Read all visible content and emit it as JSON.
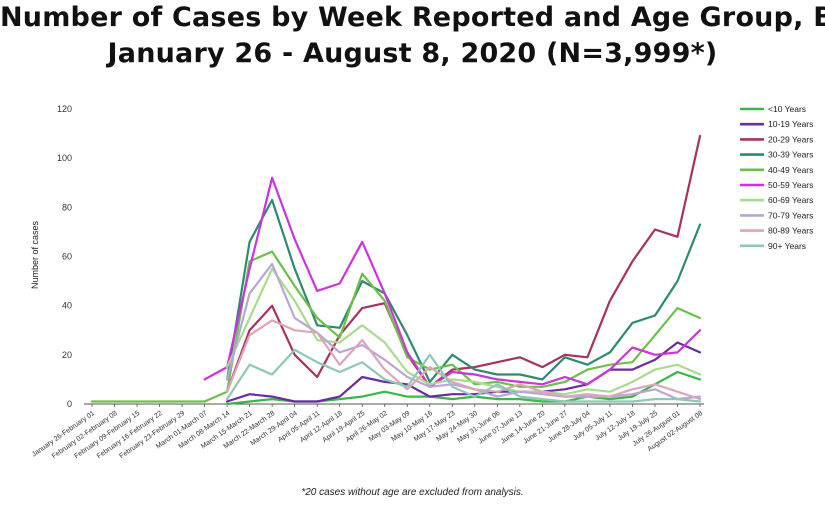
{
  "title_line1": "Number of Cases by Week Reported and Age Group, BC",
  "title_line2": "January 26 - August 8, 2020 (N=3,999*)",
  "footnote": "*20 cases without age are excluded from analysis.",
  "chart_data": {
    "type": "line",
    "title": "Number of Cases by Week Reported and Age Group, BC",
    "subtitle": "January 26 - August 8, 2020 (N=3,999*)",
    "xlabel": "",
    "ylabel": "Number of cases",
    "ylim": [
      0,
      120
    ],
    "yticks": [
      0,
      20,
      40,
      60,
      80,
      100,
      120
    ],
    "grid": false,
    "legend_position": "right",
    "categories": [
      "January 26-February 01",
      "February 02-February 08",
      "February 09-February 15",
      "February 16-February 22",
      "February 23-February 29",
      "March 01-March 07",
      "March 08-March 14",
      "March 15-March 21",
      "March 22-March 28",
      "March 29-April 04",
      "April 05-April 11",
      "April 12-April 18",
      "April 19-April 25",
      "April 26-May 02",
      "May 03-May 09",
      "May 10-May 16",
      "May 17-May 23",
      "May 24-May 30",
      "May 31-June 06",
      "June 07-June 13",
      "June 14-June 20",
      "June 21-June 27",
      "June 28-July 04",
      "July 05-July 11",
      "July 12-July 18",
      "July 19-July 25",
      "July 26-August 01",
      "August 02-August 08"
    ],
    "series": [
      {
        "name": "<10 Years",
        "color": "#3cb648",
        "values": [
          null,
          null,
          null,
          null,
          null,
          null,
          0,
          1,
          2,
          1,
          1,
          2,
          3,
          5,
          3,
          3,
          2,
          3,
          2,
          2,
          1,
          1,
          3,
          2,
          3,
          8,
          13,
          10
        ]
      },
      {
        "name": "10-19 Years",
        "color": "#6a2ca0",
        "values": [
          null,
          null,
          null,
          null,
          null,
          null,
          1,
          4,
          3,
          1,
          1,
          3,
          11,
          9,
          8,
          3,
          4,
          4,
          5,
          5,
          5,
          6,
          8,
          14,
          14,
          18,
          25,
          21
        ]
      },
      {
        "name": "20-29 Years",
        "color": "#a8325e",
        "values": [
          null,
          null,
          null,
          null,
          null,
          null,
          5,
          30,
          40,
          20,
          11,
          28,
          39,
          41,
          20,
          7,
          14,
          15,
          17,
          19,
          15,
          20,
          19,
          42,
          58,
          71,
          68,
          109
        ]
      },
      {
        "name": "30-39 Years",
        "color": "#2e8a6e",
        "values": [
          null,
          null,
          null,
          null,
          null,
          null,
          10,
          66,
          83,
          55,
          32,
          31,
          50,
          45,
          28,
          9,
          20,
          14,
          12,
          12,
          10,
          19,
          16,
          21,
          33,
          36,
          50,
          73
        ]
      },
      {
        "name": "40-49 Years",
        "color": "#6cc04a",
        "values": [
          1,
          1,
          1,
          1,
          1,
          1,
          5,
          58,
          62,
          48,
          35,
          27,
          53,
          42,
          19,
          14,
          16,
          8,
          9,
          7,
          7,
          9,
          14,
          16,
          17,
          28,
          39,
          35
        ]
      },
      {
        "name": "50-59 Years",
        "color": "#cc33dd",
        "values": [
          null,
          null,
          null,
          null,
          null,
          10,
          15,
          55,
          92,
          67,
          46,
          49,
          66,
          45,
          21,
          7,
          13,
          12,
          10,
          9,
          8,
          11,
          8,
          14,
          23,
          20,
          21,
          30
        ]
      },
      {
        "name": "60-69 Years",
        "color": "#a8dc8c",
        "values": [
          null,
          null,
          null,
          null,
          null,
          null,
          15,
          35,
          55,
          42,
          26,
          25,
          32,
          25,
          13,
          8,
          10,
          9,
          7,
          5,
          5,
          4,
          6,
          5,
          9,
          14,
          16,
          12
        ]
      },
      {
        "name": "70-79 Years",
        "color": "#b8a6d6",
        "values": [
          null,
          null,
          null,
          null,
          null,
          null,
          10,
          45,
          57,
          35,
          29,
          21,
          24,
          18,
          11,
          7,
          8,
          6,
          3,
          5,
          4,
          3,
          3,
          3,
          4,
          6,
          2,
          3
        ]
      },
      {
        "name": "80-89 Years",
        "color": "#dba6b8",
        "values": [
          null,
          null,
          null,
          null,
          null,
          null,
          5,
          28,
          34,
          30,
          29,
          16,
          26,
          14,
          6,
          15,
          9,
          6,
          5,
          8,
          5,
          3,
          4,
          3,
          6,
          8,
          5,
          2
        ]
      },
      {
        "name": "90+ Years",
        "color": "#8cc8b4",
        "values": [
          null,
          null,
          null,
          null,
          null,
          null,
          2,
          16,
          12,
          22,
          17,
          13,
          17,
          10,
          7,
          20,
          7,
          3,
          8,
          3,
          2,
          1,
          1,
          1,
          1,
          2,
          2,
          1
        ]
      }
    ]
  }
}
